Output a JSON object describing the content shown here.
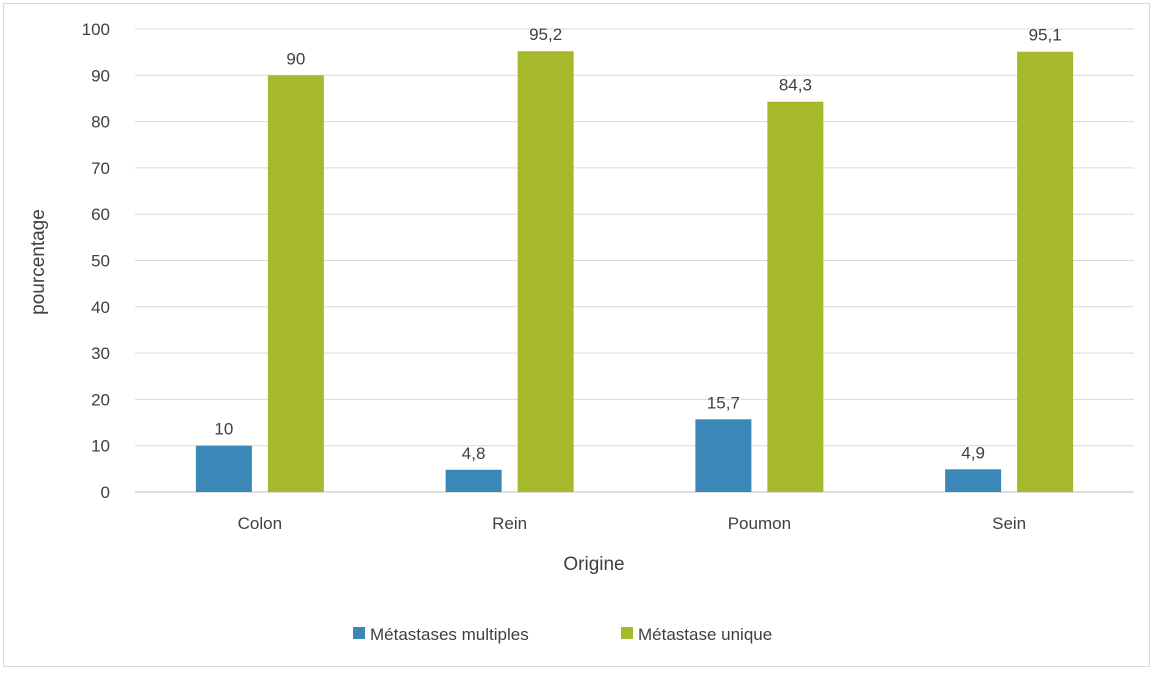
{
  "chart_data": {
    "type": "bar",
    "categories": [
      "Colon",
      "Rein",
      "Poumon",
      "Sein"
    ],
    "series": [
      {
        "name": "Métastases multiples",
        "values": [
          10,
          4.8,
          15.7,
          4.9
        ],
        "color": "#3a87b8"
      },
      {
        "name": "Métastase unique",
        "values": [
          90,
          95.2,
          84.3,
          95.1
        ],
        "color": "#a5b92a"
      }
    ],
    "data_labels": [
      [
        "10",
        "4,8",
        "15,7",
        "4,9"
      ],
      [
        "90",
        "95,2",
        "84,3",
        "95,1"
      ]
    ],
    "title": "",
    "xlabel": "Origine",
    "ylabel": "pourcentage",
    "ylim": [
      0,
      100
    ],
    "yticks": [
      0,
      10,
      20,
      30,
      40,
      50,
      60,
      70,
      80,
      90,
      100
    ],
    "grid": true,
    "legend_position": "bottom"
  }
}
